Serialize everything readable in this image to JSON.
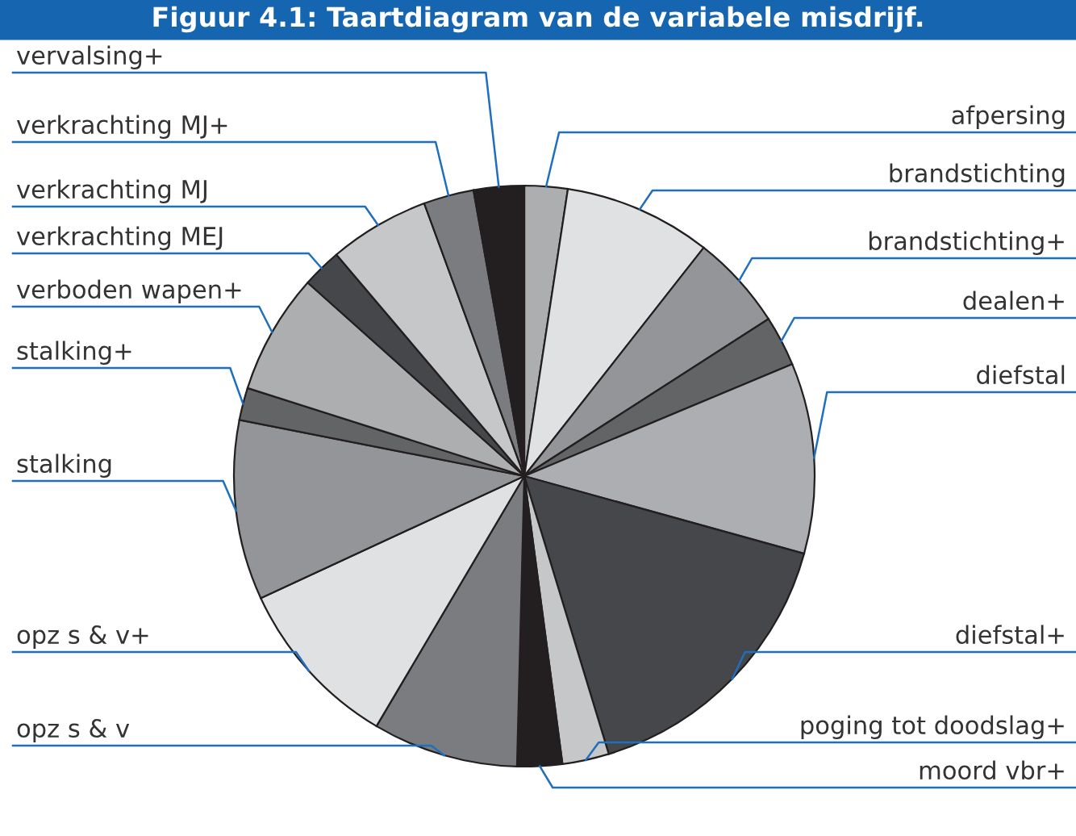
{
  "chart_data": {
    "type": "pie",
    "title": "Figuur 4.1: Taartdiagram van de variabele misdrijf.",
    "categories": [
      "afpersing",
      "brandstichting",
      "brandstichting+",
      "dealen+",
      "diefstal",
      "diefstal+",
      "poging tot doodslag+",
      "moord vbr+",
      "opz s & v",
      "opz s & v+",
      "stalking",
      "stalking+",
      "verboden wapen+",
      "verkrachting MEJ",
      "verkrachting MJ",
      "verkrachting MJ+",
      "vervalsing+"
    ],
    "values": [
      2.4,
      8.2,
      5.3,
      2.8,
      10.6,
      16.0,
      2.6,
      2.5,
      8.1,
      9.6,
      10.0,
      1.8,
      6.7,
      2.2,
      5.6,
      2.8,
      2.8
    ],
    "colors": [
      "#adaeb0",
      "#e0e1e3",
      "#939598",
      "#636466",
      "#adaeb1",
      "#46474a",
      "#c6c7c9",
      "#231f20",
      "#7b7c80",
      "#e0e1e3",
      "#939598",
      "#636466",
      "#adaeb0",
      "#46474a",
      "#c6c7c9",
      "#7b7c80",
      "#231f20"
    ],
    "legend": false
  }
}
